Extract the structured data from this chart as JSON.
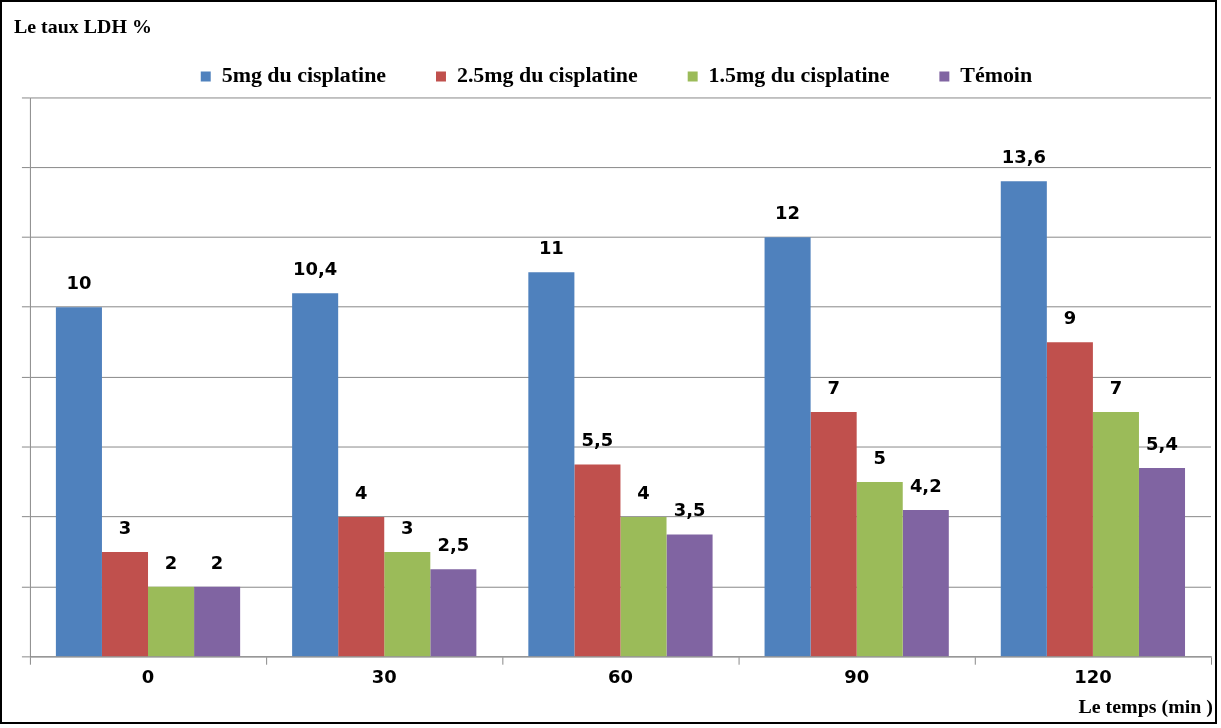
{
  "chart_data": {
    "type": "bar",
    "ylabel": "Le taux LDH %",
    "xlabel": "Le temps (min )",
    "categories": [
      "0",
      "30",
      "60",
      "90",
      "120"
    ],
    "series": [
      {
        "name": "5mg du cisplatine",
        "color": "#4f81bd",
        "values": [
          10,
          10.4,
          11,
          12,
          13.6
        ],
        "value_labels": [
          "10",
          "10,4",
          "11",
          "12",
          "13,6"
        ]
      },
      {
        "name": "2.5mg du cisplatine",
        "color": "#c0504d",
        "values": [
          3,
          4,
          5.5,
          7,
          9
        ],
        "value_labels": [
          "3",
          "4",
          "5,5",
          "7",
          "9"
        ]
      },
      {
        "name": "1.5mg du cisplatine",
        "color": "#9bbb59",
        "values": [
          2,
          3,
          4,
          5,
          7
        ],
        "value_labels": [
          "2",
          "3",
          "4",
          "5",
          "7"
        ]
      },
      {
        "name": "Témoin",
        "color": "#8064a2",
        "values": [
          2,
          2.5,
          3.5,
          4.2,
          5.4
        ],
        "value_labels": [
          "2",
          "2,5",
          "3,5",
          "4,2",
          "5,4"
        ]
      }
    ],
    "ylim": [
      0,
      16
    ],
    "yticks": [
      {
        "value": 0,
        "label": null
      },
      {
        "value": 2,
        "label": null
      },
      {
        "value": 4,
        "label": null
      },
      {
        "value": 6,
        "label": null
      },
      {
        "value": 8,
        "label": null
      },
      {
        "value": 10,
        "label": null
      },
      {
        "value": 12,
        "label": null
      },
      {
        "value": 14,
        "label": null
      },
      {
        "value": 16,
        "label": null
      }
    ],
    "grid": "y",
    "legend": "top",
    "tick_labels": "x"
  }
}
